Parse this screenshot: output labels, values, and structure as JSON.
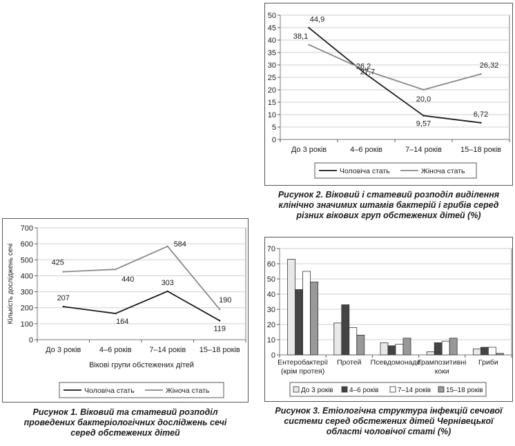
{
  "figures": [
    {
      "caption_lines": [
        "Рисунок 1. Віковий та статевий розподіл",
        "проведених бактеріологічних досліджень сечі",
        "серед обстежених дітей"
      ]
    },
    {
      "caption_lines": [
        "Рисунок 2. Віковий і статевий розподіл виділення",
        "клінічно значимих штамів бактерій і грибів серед",
        "різних вікових груп обстежених дітей (%)"
      ]
    },
    {
      "caption_lines": [
        "Рисунок 3. Етіологічна структура інфекцій сечової",
        "системи серед обстежених дітей Чернівецької",
        "області чоловічої статі (%)"
      ]
    }
  ],
  "chart_data": [
    {
      "type": "line",
      "categories": [
        "До 3 років",
        "4–6 років",
        "7–14 років",
        "15–18 років"
      ],
      "series": [
        {
          "name": "Чоловіча стать",
          "values": [
            207,
            164,
            303,
            119
          ],
          "color": "#1a1a1a",
          "labels": [
            "207",
            "164",
            "303",
            "119"
          ]
        },
        {
          "name": "Жіноча стать",
          "values": [
            425,
            440,
            584,
            190
          ],
          "color": "#888888",
          "labels": [
            "425",
            "440",
            "584",
            "190"
          ]
        }
      ],
      "title": "",
      "xlabel": "Вікові групи обстежених дітей",
      "ylabel": "Кількість досліджень сечі",
      "ylim": [
        0,
        700
      ],
      "yticks": [
        0,
        100,
        200,
        300,
        400,
        500,
        600,
        700
      ],
      "ytick_labels": [
        "0",
        "100",
        "200",
        "300",
        "400",
        "500",
        "600",
        "700"
      ],
      "grid": true,
      "legend": "bottom"
    },
    {
      "type": "line",
      "categories": [
        "До 3 років",
        "4–6 років",
        "7–14 років",
        "15–18 років"
      ],
      "series": [
        {
          "name": "Чоловіча стать",
          "values": [
            44.9,
            26.2,
            9.57,
            6.72
          ],
          "color": "#1a1a1a",
          "labels": [
            "44,9",
            "26,2",
            "9,57",
            "6,72"
          ]
        },
        {
          "name": "Жіноча стать",
          "values": [
            38.1,
            27.7,
            20.0,
            26.32
          ],
          "color": "#888888",
          "labels": [
            "38,1",
            "27,7",
            "20,0",
            "26,32"
          ]
        }
      ],
      "title": "",
      "xlabel": "",
      "ylabel": "",
      "ylim": [
        0,
        50
      ],
      "yticks": [
        0,
        5,
        10,
        15,
        20,
        25,
        30,
        35,
        40,
        45,
        50
      ],
      "ytick_labels": [
        "0",
        "5",
        "10",
        "15",
        "20",
        "25",
        "30",
        "35",
        "40",
        "45",
        "50"
      ],
      "grid": true,
      "legend": "bottom"
    },
    {
      "type": "bar",
      "categories": [
        "Ентеробактерії (крім протея)",
        "Протей",
        "Псевдомонади",
        "Грампозитивні коки",
        "Гриби"
      ],
      "category_lines": [
        [
          "Ентеробактерії",
          "(крім протея)"
        ],
        [
          "Протей"
        ],
        [
          "Псевдомонади"
        ],
        [
          "Грампозитивні",
          "коки"
        ],
        [
          "Гриби"
        ]
      ],
      "series": [
        {
          "name": "До 3 років",
          "values": [
            63,
            21,
            8,
            2,
            4
          ],
          "color": "#e8e8e8"
        },
        {
          "name": "4–6 років",
          "values": [
            43,
            33,
            6,
            8,
            5
          ],
          "color": "#444444"
        },
        {
          "name": "7–14 років",
          "values": [
            55,
            18,
            7,
            9,
            5
          ],
          "color": "#ffffff"
        },
        {
          "name": "15–18 років",
          "values": [
            48,
            13,
            11,
            11,
            1
          ],
          "color": "#999999"
        }
      ],
      "title": "",
      "xlabel": "",
      "ylabel": "",
      "ylim": [
        0,
        70
      ],
      "yticks": [
        0,
        10,
        20,
        30,
        40,
        50,
        60,
        70
      ],
      "ytick_labels": [
        "0",
        "10",
        "20",
        "30",
        "40",
        "50",
        "60",
        "70"
      ],
      "grid": true,
      "legend": "bottom"
    }
  ]
}
